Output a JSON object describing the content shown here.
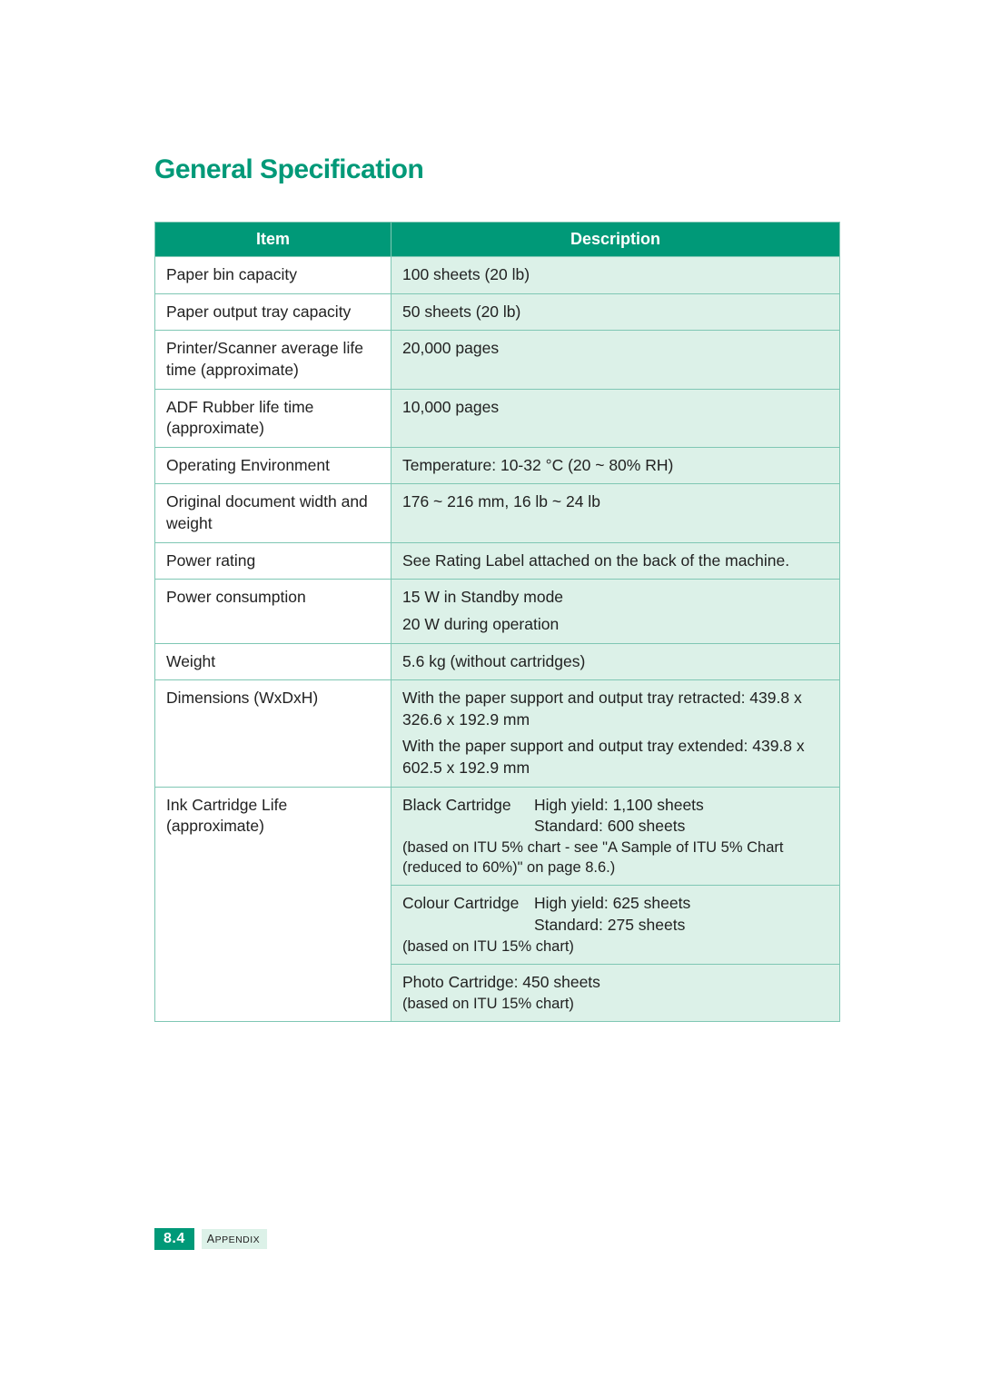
{
  "title": "General Specification",
  "table": {
    "columns": [
      "Item",
      "Description"
    ],
    "header_bg": "#009978",
    "header_fg": "#ffffff",
    "border_color": "#7fc7b4",
    "desc_bg": "#dcf1e8",
    "item_bg": "#ffffff",
    "rows": [
      {
        "item": "Paper bin capacity",
        "desc": [
          "100 sheets (20 lb)"
        ]
      },
      {
        "item": "Paper output tray capacity",
        "desc": [
          "50 sheets (20 lb)"
        ]
      },
      {
        "item": "Printer/Scanner average life time (approximate)",
        "desc": [
          "20,000 pages"
        ]
      },
      {
        "item": "ADF Rubber life time (approximate)",
        "desc": [
          "10,000 pages"
        ]
      },
      {
        "item": "Operating Environment",
        "desc": [
          "Temperature: 10-32 °C (20 ~ 80% RH)"
        ]
      },
      {
        "item": "Original document width and weight",
        "desc": [
          "176 ~ 216 mm, 16 lb ~ 24 lb"
        ]
      },
      {
        "item": "Power rating",
        "desc": [
          "See Rating Label attached on the back of the machine."
        ]
      },
      {
        "item": "Power consumption",
        "desc": [
          "15 W in Standby mode",
          "20 W during operation"
        ]
      },
      {
        "item": "Weight",
        "desc": [
          "5.6 kg (without cartridges)"
        ]
      },
      {
        "item": "Dimensions (WxDxH)",
        "desc": [
          "With the paper support and output tray retracted: 439.8 x 326.6 x 192.9 mm",
          "With the paper support and output tray extended: 439.8 x 602.5 x 192.9 mm"
        ]
      }
    ],
    "ink_item": "Ink Cartridge Life (approximate)",
    "ink_item_line1": "Ink Cartridge Life",
    "ink_item_line2": "(approximate)",
    "ink_cells": [
      {
        "label": "Black Cartridge",
        "high": "High yield: 1,100 sheets",
        "std": "Standard: 600 sheets",
        "note": "(based on ITU 5% chart - see \"A Sample of ITU 5% Chart (reduced to 60%)\" on page 8.6.)"
      },
      {
        "label": "Colour Cartridge",
        "high": "High yield: 625 sheets",
        "std": "Standard: 275 sheets",
        "note": "(based on ITU 15% chart)"
      },
      {
        "photo": "Photo Cartridge: 450 sheets",
        "note": "(based on ITU 15% chart)"
      }
    ]
  },
  "footer": {
    "page_number": "8.4",
    "section_first": "A",
    "section_rest": "PPENDIX"
  },
  "colors": {
    "accent": "#009978",
    "tint": "#dcf1e8",
    "text": "#222222",
    "page_bg": "#ffffff"
  }
}
